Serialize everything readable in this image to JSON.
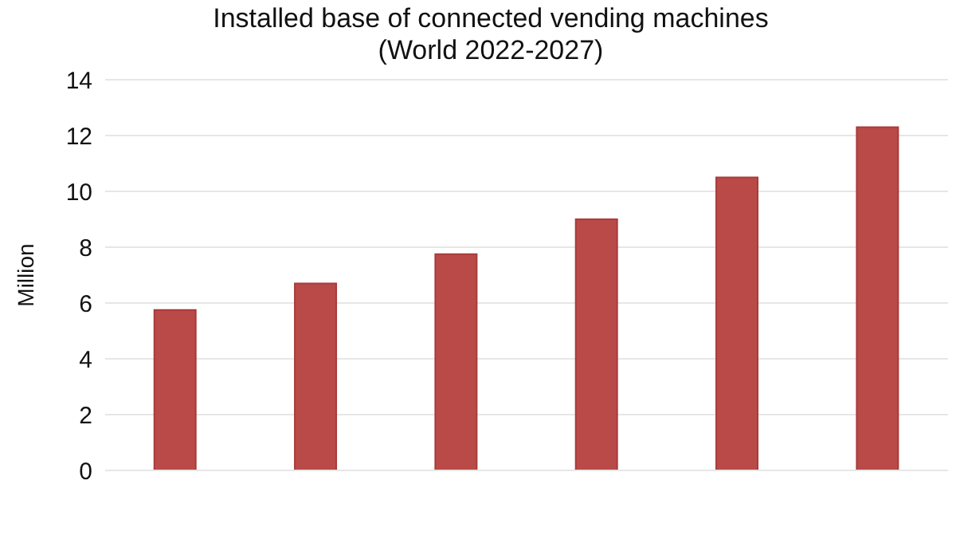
{
  "chart_data": {
    "type": "bar",
    "title": "Installed base of connected vending machines",
    "subtitle": "(World 2022-2027)",
    "ylabel": "Million",
    "categories": [
      null,
      null,
      null,
      null,
      null,
      null
    ],
    "values": [
      5.75,
      6.7,
      7.75,
      9.0,
      10.5,
      12.3
    ],
    "color": "#b94a48",
    "ylim": [
      0,
      14
    ],
    "yticks": [
      0,
      2,
      4,
      6,
      8,
      10,
      12,
      14
    ],
    "grid": "y"
  }
}
